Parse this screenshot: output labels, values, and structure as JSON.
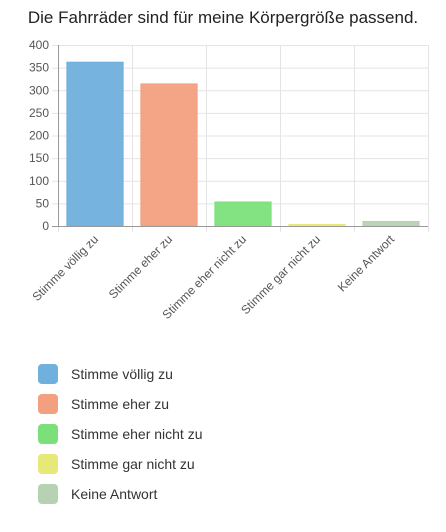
{
  "chart_data": {
    "type": "bar",
    "title": "Die Fahrräder sind für meine Körpergröße passend.",
    "categories": [
      "Stimme völlig zu",
      "Stimme eher zu",
      "Stimme eher nicht zu",
      "Stimme gar nicht zu",
      "Keine Antwort"
    ],
    "values": [
      362,
      314,
      53,
      2,
      10
    ],
    "colors": [
      "#6fb0dd",
      "#f2a080",
      "#7ce07a",
      "#e8e87a",
      "#b7d2b3"
    ],
    "ylim": [
      0,
      400
    ],
    "yticks": [
      0,
      50,
      100,
      150,
      200,
      250,
      300,
      350,
      400
    ],
    "grid": true,
    "legend_position": "bottom-left"
  }
}
